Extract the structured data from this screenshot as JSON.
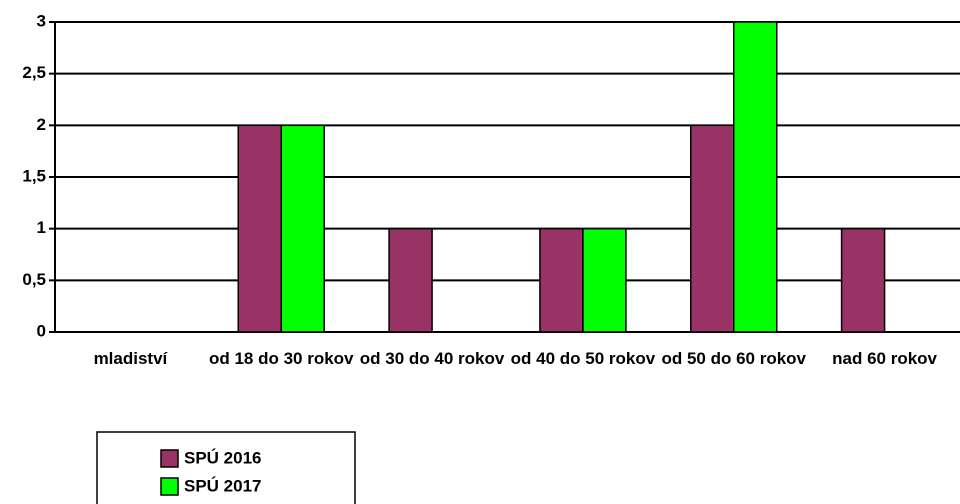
{
  "chart_data": {
    "type": "bar",
    "categories": [
      "mladiství",
      "od 18 do 30 rokov",
      "od 30 do 40 rokov",
      "od 40 do 50 rokov",
      "od 50 do 60 rokov",
      "nad 60 rokov"
    ],
    "series": [
      {
        "name": "SPÚ 2016",
        "color": "#993366",
        "values": [
          0,
          2,
          1,
          1,
          2,
          1
        ]
      },
      {
        "name": "SPÚ 2017",
        "color": "#00ff00",
        "values": [
          0,
          2,
          0,
          1,
          3,
          0
        ]
      }
    ],
    "ylim": [
      0,
      3
    ],
    "yticks": [
      0,
      {
        "value": 0.5,
        "label": "0,5"
      },
      1,
      {
        "value": 1.5,
        "label": "1,5"
      },
      2,
      {
        "value": 2.5,
        "label": "2,5"
      },
      3
    ],
    "grid": true,
    "legend": "bottom-left"
  }
}
